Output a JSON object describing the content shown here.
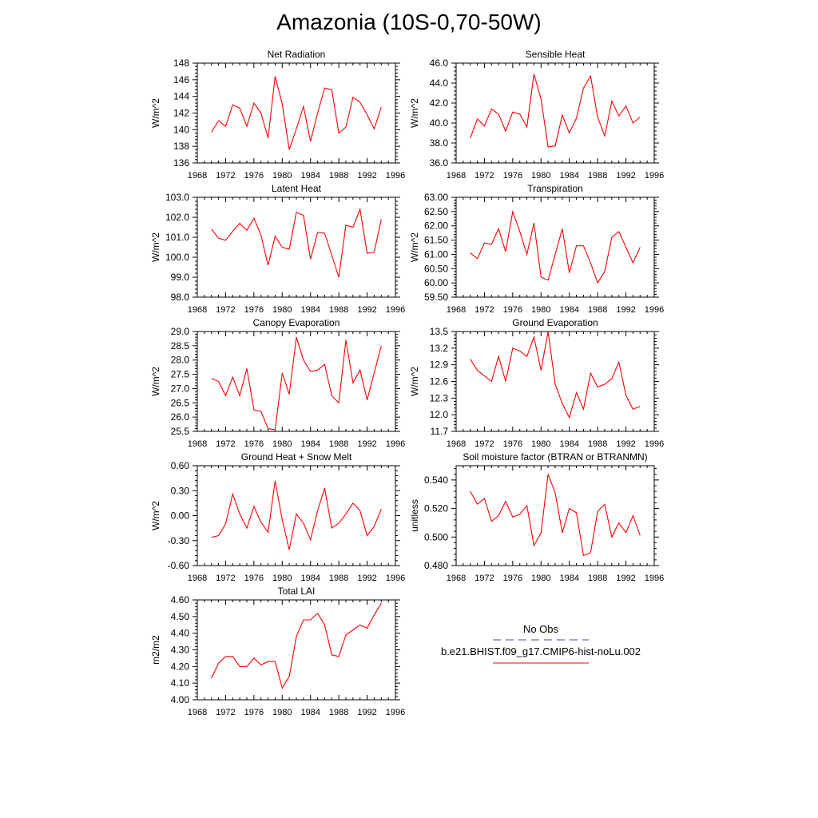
{
  "title": "Amazonia (10S-0,70-50W)",
  "chart_data": [
    {
      "type": "line",
      "title": "Net Radiation",
      "ylabel": "W/m^2",
      "xlim": [
        1968,
        1996
      ],
      "ylim": [
        136,
        148
      ],
      "xticks": [
        "1968",
        "1972",
        "1976",
        "1980",
        "1984",
        "1988",
        "1992",
        "1996"
      ],
      "yticks": [
        "136",
        "138",
        "140",
        "142",
        "144",
        "146",
        "148"
      ],
      "x": [
        1970,
        1971,
        1972,
        1973,
        1974,
        1975,
        1976,
        1977,
        1978,
        1979,
        1980,
        1981,
        1982,
        1983,
        1984,
        1985,
        1986,
        1987,
        1988,
        1989,
        1990,
        1991,
        1992,
        1993,
        1994
      ],
      "series": [
        {
          "values": [
            139.7,
            141.1,
            140.4,
            143.0,
            142.6,
            140.4,
            143.2,
            142.0,
            139.0,
            146.4,
            143.1,
            137.6,
            140.1,
            142.8,
            138.6,
            142.0,
            145.0,
            144.8,
            139.6,
            140.3,
            143.9,
            143.3,
            141.8,
            140.1,
            142.7
          ]
        }
      ]
    },
    {
      "type": "line",
      "title": "Sensible Heat",
      "ylabel": "W/m^2",
      "xlim": [
        1968,
        1996
      ],
      "ylim": [
        36.0,
        46.0
      ],
      "xticks": [
        "1968",
        "1972",
        "1976",
        "1980",
        "1984",
        "1988",
        "1992",
        "1996"
      ],
      "yticks": [
        "36.0",
        "38.0",
        "40.0",
        "42.0",
        "44.0",
        "46.0"
      ],
      "x": [
        1970,
        1971,
        1972,
        1973,
        1974,
        1975,
        1976,
        1977,
        1978,
        1979,
        1980,
        1981,
        1982,
        1983,
        1984,
        1985,
        1986,
        1987,
        1988,
        1989,
        1990,
        1991,
        1992,
        1993,
        1994
      ],
      "series": [
        {
          "values": [
            38.5,
            40.4,
            39.7,
            41.4,
            40.9,
            39.2,
            41.1,
            40.9,
            39.6,
            44.9,
            42.4,
            37.6,
            37.7,
            40.8,
            39.0,
            40.5,
            43.5,
            44.7,
            40.6,
            38.7,
            42.2,
            40.7,
            41.7,
            40.0,
            40.6
          ]
        }
      ]
    },
    {
      "type": "line",
      "title": "Latent Heat",
      "ylabel": "W/m^2",
      "xlim": [
        1968,
        1996
      ],
      "ylim": [
        98.0,
        103.0
      ],
      "xticks": [
        "1968",
        "1972",
        "1976",
        "1980",
        "1984",
        "1988",
        "1992",
        "1996"
      ],
      "yticks": [
        "98.0",
        "99.0",
        "100.0",
        "101.0",
        "102.0",
        "103.0"
      ],
      "x": [
        1970,
        1971,
        1972,
        1973,
        1974,
        1975,
        1976,
        1977,
        1978,
        1979,
        1980,
        1981,
        1982,
        1983,
        1984,
        1985,
        1986,
        1987,
        1988,
        1989,
        1990,
        1991,
        1992,
        1993,
        1994
      ],
      "series": [
        {
          "values": [
            101.4,
            100.95,
            100.85,
            101.3,
            101.7,
            101.35,
            101.95,
            101.1,
            99.6,
            101.05,
            100.5,
            100.4,
            102.25,
            102.1,
            99.9,
            101.25,
            101.2,
            100.1,
            99.0,
            101.6,
            101.5,
            102.4,
            100.2,
            100.25,
            101.9
          ]
        }
      ]
    },
    {
      "type": "line",
      "title": "Transpiration",
      "ylabel": "W/m^2",
      "xlim": [
        1968,
        1996
      ],
      "ylim": [
        59.5,
        63.0
      ],
      "xticks": [
        "1968",
        "1972",
        "1976",
        "1980",
        "1984",
        "1988",
        "1992",
        "1996"
      ],
      "yticks": [
        "59.50",
        "60.00",
        "60.50",
        "61.00",
        "61.50",
        "62.00",
        "62.50",
        "63.00"
      ],
      "x": [
        1970,
        1971,
        1972,
        1973,
        1974,
        1975,
        1976,
        1977,
        1978,
        1979,
        1980,
        1981,
        1982,
        1983,
        1984,
        1985,
        1986,
        1987,
        1988,
        1989,
        1990,
        1991,
        1992,
        1993,
        1994
      ],
      "series": [
        {
          "values": [
            61.05,
            60.85,
            61.4,
            61.35,
            61.9,
            61.1,
            62.5,
            61.8,
            61.0,
            62.1,
            60.2,
            60.1,
            61.0,
            61.9,
            60.35,
            61.3,
            61.3,
            60.7,
            60.0,
            60.4,
            61.6,
            61.8,
            61.25,
            60.7,
            61.25
          ]
        }
      ]
    },
    {
      "type": "line",
      "title": "Canopy Evaporation",
      "ylabel": "W/m^2",
      "xlim": [
        1968,
        1996
      ],
      "ylim": [
        25.5,
        29.0
      ],
      "xticks": [
        "1968",
        "1972",
        "1976",
        "1980",
        "1984",
        "1988",
        "1992",
        "1996"
      ],
      "yticks": [
        "25.5",
        "26.0",
        "26.5",
        "27.0",
        "27.5",
        "28.0",
        "28.5",
        "29.0"
      ],
      "x": [
        1970,
        1971,
        1972,
        1973,
        1974,
        1975,
        1976,
        1977,
        1978,
        1979,
        1980,
        1981,
        1982,
        1983,
        1984,
        1985,
        1986,
        1987,
        1988,
        1989,
        1990,
        1991,
        1992,
        1993,
        1994
      ],
      "series": [
        {
          "values": [
            27.35,
            27.25,
            26.75,
            27.4,
            26.75,
            27.7,
            26.25,
            26.2,
            25.6,
            25.55,
            27.55,
            26.8,
            28.8,
            28.0,
            27.6,
            27.65,
            27.85,
            26.75,
            26.5,
            28.7,
            27.2,
            27.65,
            26.6,
            27.55,
            28.5
          ]
        }
      ]
    },
    {
      "type": "line",
      "title": "Ground Evaporation",
      "ylabel": "W/m^2",
      "xlim": [
        1968,
        1996
      ],
      "ylim": [
        11.7,
        13.5
      ],
      "xticks": [
        "1968",
        "1972",
        "1976",
        "1980",
        "1984",
        "1988",
        "1992",
        "1996"
      ],
      "yticks": [
        "11.7",
        "12.0",
        "12.3",
        "12.6",
        "12.9",
        "13.2",
        "13.5"
      ],
      "x": [
        1970,
        1971,
        1972,
        1973,
        1974,
        1975,
        1976,
        1977,
        1978,
        1979,
        1980,
        1981,
        1982,
        1983,
        1984,
        1985,
        1986,
        1987,
        1988,
        1989,
        1990,
        1991,
        1992,
        1993,
        1994
      ],
      "series": [
        {
          "values": [
            13.0,
            12.8,
            12.7,
            12.6,
            13.05,
            12.6,
            13.2,
            13.15,
            13.05,
            13.4,
            12.8,
            13.5,
            12.55,
            12.2,
            11.95,
            12.4,
            12.1,
            12.75,
            12.5,
            12.55,
            12.65,
            12.95,
            12.35,
            12.1,
            12.15
          ]
        }
      ]
    },
    {
      "type": "line",
      "title": "Ground Heat + Snow Melt",
      "ylabel": "W/m^2",
      "xlim": [
        1968,
        1996
      ],
      "ylim": [
        -0.6,
        0.6
      ],
      "xticks": [
        "1968",
        "1972",
        "1976",
        "1980",
        "1984",
        "1988",
        "1992",
        "1996"
      ],
      "yticks": [
        "-0.60",
        "-0.30",
        "0.00",
        "0.30",
        "0.60"
      ],
      "x": [
        1970,
        1971,
        1972,
        1973,
        1974,
        1975,
        1976,
        1977,
        1978,
        1979,
        1980,
        1981,
        1982,
        1983,
        1984,
        1985,
        1986,
        1987,
        1988,
        1989,
        1990,
        1991,
        1992,
        1993,
        1994
      ],
      "series": [
        {
          "values": [
            -0.26,
            -0.24,
            -0.1,
            0.26,
            0.02,
            -0.15,
            0.11,
            -0.08,
            -0.2,
            0.42,
            -0.05,
            -0.41,
            0.02,
            -0.09,
            -0.29,
            0.06,
            0.33,
            -0.15,
            -0.09,
            0.02,
            0.15,
            0.06,
            -0.24,
            -0.13,
            0.08
          ]
        }
      ]
    },
    {
      "type": "line",
      "title": "Soil moisture factor (BTRAN or BTRANMN)",
      "ylabel": "unitless",
      "xlim": [
        1968,
        1996
      ],
      "ylim": [
        0.48,
        0.55
      ],
      "xticks": [
        "1968",
        "1972",
        "1976",
        "1980",
        "1984",
        "1988",
        "1992",
        "1996"
      ],
      "yticks": [
        "0.480",
        "0.500",
        "0.520",
        "0.540"
      ],
      "x": [
        1970,
        1971,
        1972,
        1973,
        1974,
        1975,
        1976,
        1977,
        1978,
        1979,
        1980,
        1981,
        1982,
        1983,
        1984,
        1985,
        1986,
        1987,
        1988,
        1989,
        1990,
        1991,
        1992,
        1993,
        1994
      ],
      "series": [
        {
          "values": [
            0.532,
            0.523,
            0.527,
            0.511,
            0.515,
            0.525,
            0.514,
            0.516,
            0.522,
            0.494,
            0.503,
            0.544,
            0.531,
            0.503,
            0.52,
            0.517,
            0.487,
            0.489,
            0.518,
            0.523,
            0.5,
            0.51,
            0.503,
            0.515,
            0.501
          ]
        }
      ]
    },
    {
      "type": "line",
      "title": "Total LAI",
      "ylabel": "m2/m2",
      "xlim": [
        1968,
        1996
      ],
      "ylim": [
        4.0,
        4.6
      ],
      "xticks": [
        "1968",
        "1972",
        "1976",
        "1980",
        "1984",
        "1988",
        "1992",
        "1996"
      ],
      "yticks": [
        "4.00",
        "4.10",
        "4.20",
        "4.30",
        "4.40",
        "4.50",
        "4.60"
      ],
      "x": [
        1970,
        1971,
        1972,
        1973,
        1974,
        1975,
        1976,
        1977,
        1978,
        1979,
        1980,
        1981,
        1982,
        1983,
        1984,
        1985,
        1986,
        1987,
        1988,
        1989,
        1990,
        1991,
        1992,
        1993,
        1994
      ],
      "series": [
        {
          "values": [
            4.13,
            4.22,
            4.26,
            4.26,
            4.2,
            4.2,
            4.25,
            4.21,
            4.23,
            4.23,
            4.07,
            4.14,
            4.38,
            4.48,
            4.48,
            4.52,
            4.45,
            4.27,
            4.26,
            4.39,
            4.42,
            4.45,
            4.43,
            4.51,
            4.58
          ]
        }
      ]
    }
  ],
  "legend": {
    "obs_label": "No Obs",
    "model_label": "b.e21.BHIST.f09_g17.CMIP6-hist-noLu.002",
    "obs_color": "#4444aa",
    "model_color": "#ff0000"
  }
}
